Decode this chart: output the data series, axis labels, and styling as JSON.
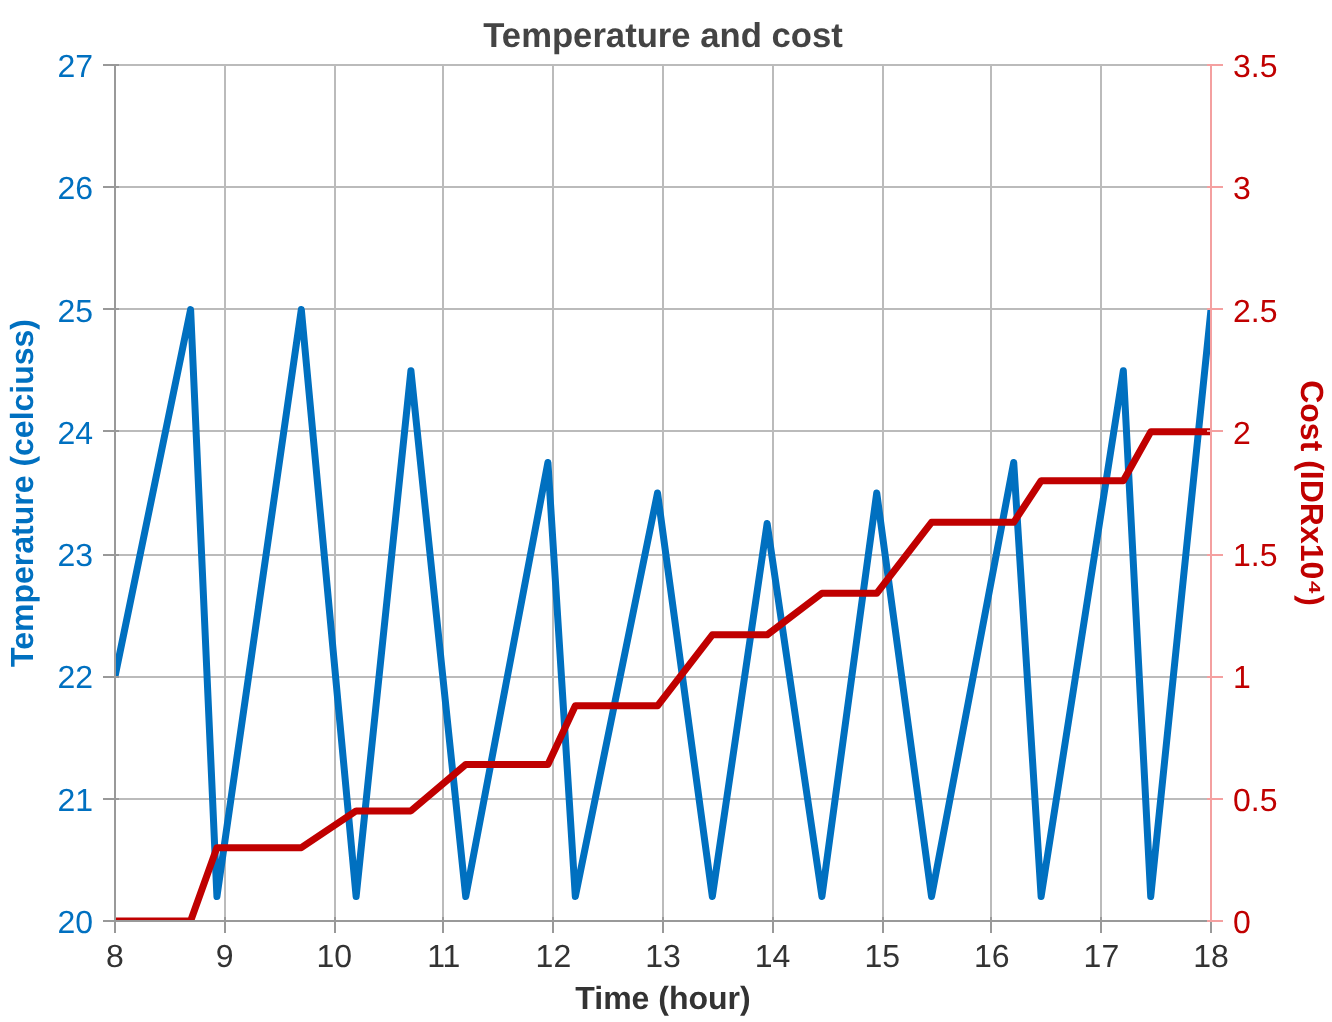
{
  "chart_data": {
    "type": "line",
    "title": "Temperature and cost",
    "xlabel": "Time (hour)",
    "ylabel": "Temperature (celciuss)",
    "y2label": "Cost (IDRx10⁴)",
    "xlim": [
      8,
      18
    ],
    "xticks": [
      8,
      9,
      10,
      11,
      12,
      13,
      14,
      15,
      16,
      17,
      18
    ],
    "ylim": [
      20,
      27
    ],
    "yticks": [
      20,
      21,
      22,
      23,
      24,
      25,
      26,
      27
    ],
    "y2lim": [
      0,
      3.5
    ],
    "y2ticks": [
      0,
      0.5,
      1,
      1.5,
      2,
      2.5,
      3,
      3.5
    ],
    "grid": true,
    "line_style": "solid",
    "marker": "none",
    "series": [
      {
        "color": "#0070c0",
        "x": [
          8,
          8.69,
          8.93,
          9.7,
          10.2,
          10.7,
          11.2,
          11.95,
          12.2,
          12.95,
          13.45,
          13.95,
          14.45,
          14.95,
          15.45,
          16.2,
          16.45,
          17.2,
          17.45,
          18
        ],
        "values": [
          22,
          25,
          20.2,
          25,
          20.2,
          24.5,
          20.2,
          23.75,
          20.2,
          23.5,
          20.2,
          23.25,
          20.2,
          23.5,
          20.2,
          23.75,
          20.2,
          24.5,
          20.2,
          25
        ]
      },
      {
        "color": "#c00000",
        "axis": "y2",
        "x": [
          8,
          8.69,
          8.93,
          9.7,
          10.2,
          10.7,
          11.2,
          11.95,
          12.2,
          12.95,
          13.45,
          13.95,
          14.45,
          14.95,
          15.45,
          16.2,
          16.45,
          17.2,
          17.45,
          18
        ],
        "values": [
          0,
          0,
          0.3,
          0.3,
          0.45,
          0.45,
          0.64,
          0.64,
          0.88,
          0.88,
          1.17,
          1.17,
          1.34,
          1.34,
          1.63,
          1.63,
          1.8,
          1.8,
          2,
          2
        ]
      }
    ]
  }
}
